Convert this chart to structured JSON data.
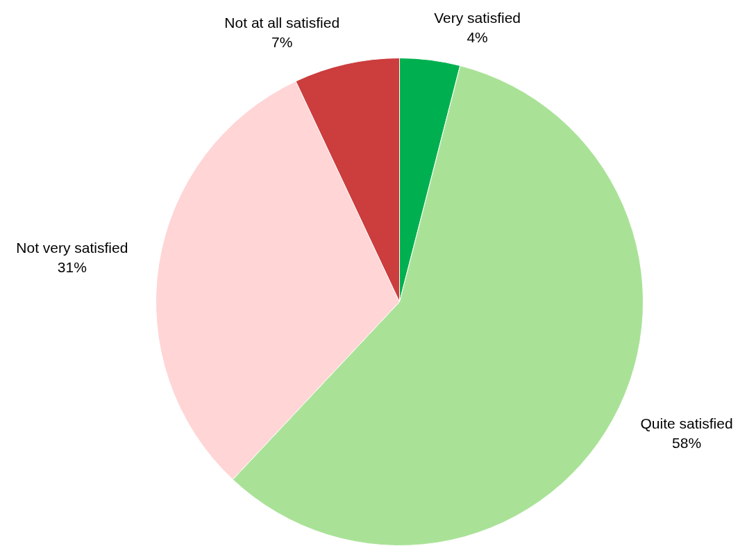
{
  "chart_data": {
    "type": "pie",
    "categories": [
      "Very satisfied",
      "Quite satisfied",
      "Not very satisfied",
      "Not at all satisfied"
    ],
    "values": [
      4,
      58,
      31,
      7
    ],
    "value_labels": [
      "4%",
      "58%",
      "31%",
      "7%"
    ],
    "colors": [
      "#00b050",
      "#a9e297",
      "#ffd5d6",
      "#cc3d3d"
    ],
    "legend": false
  }
}
